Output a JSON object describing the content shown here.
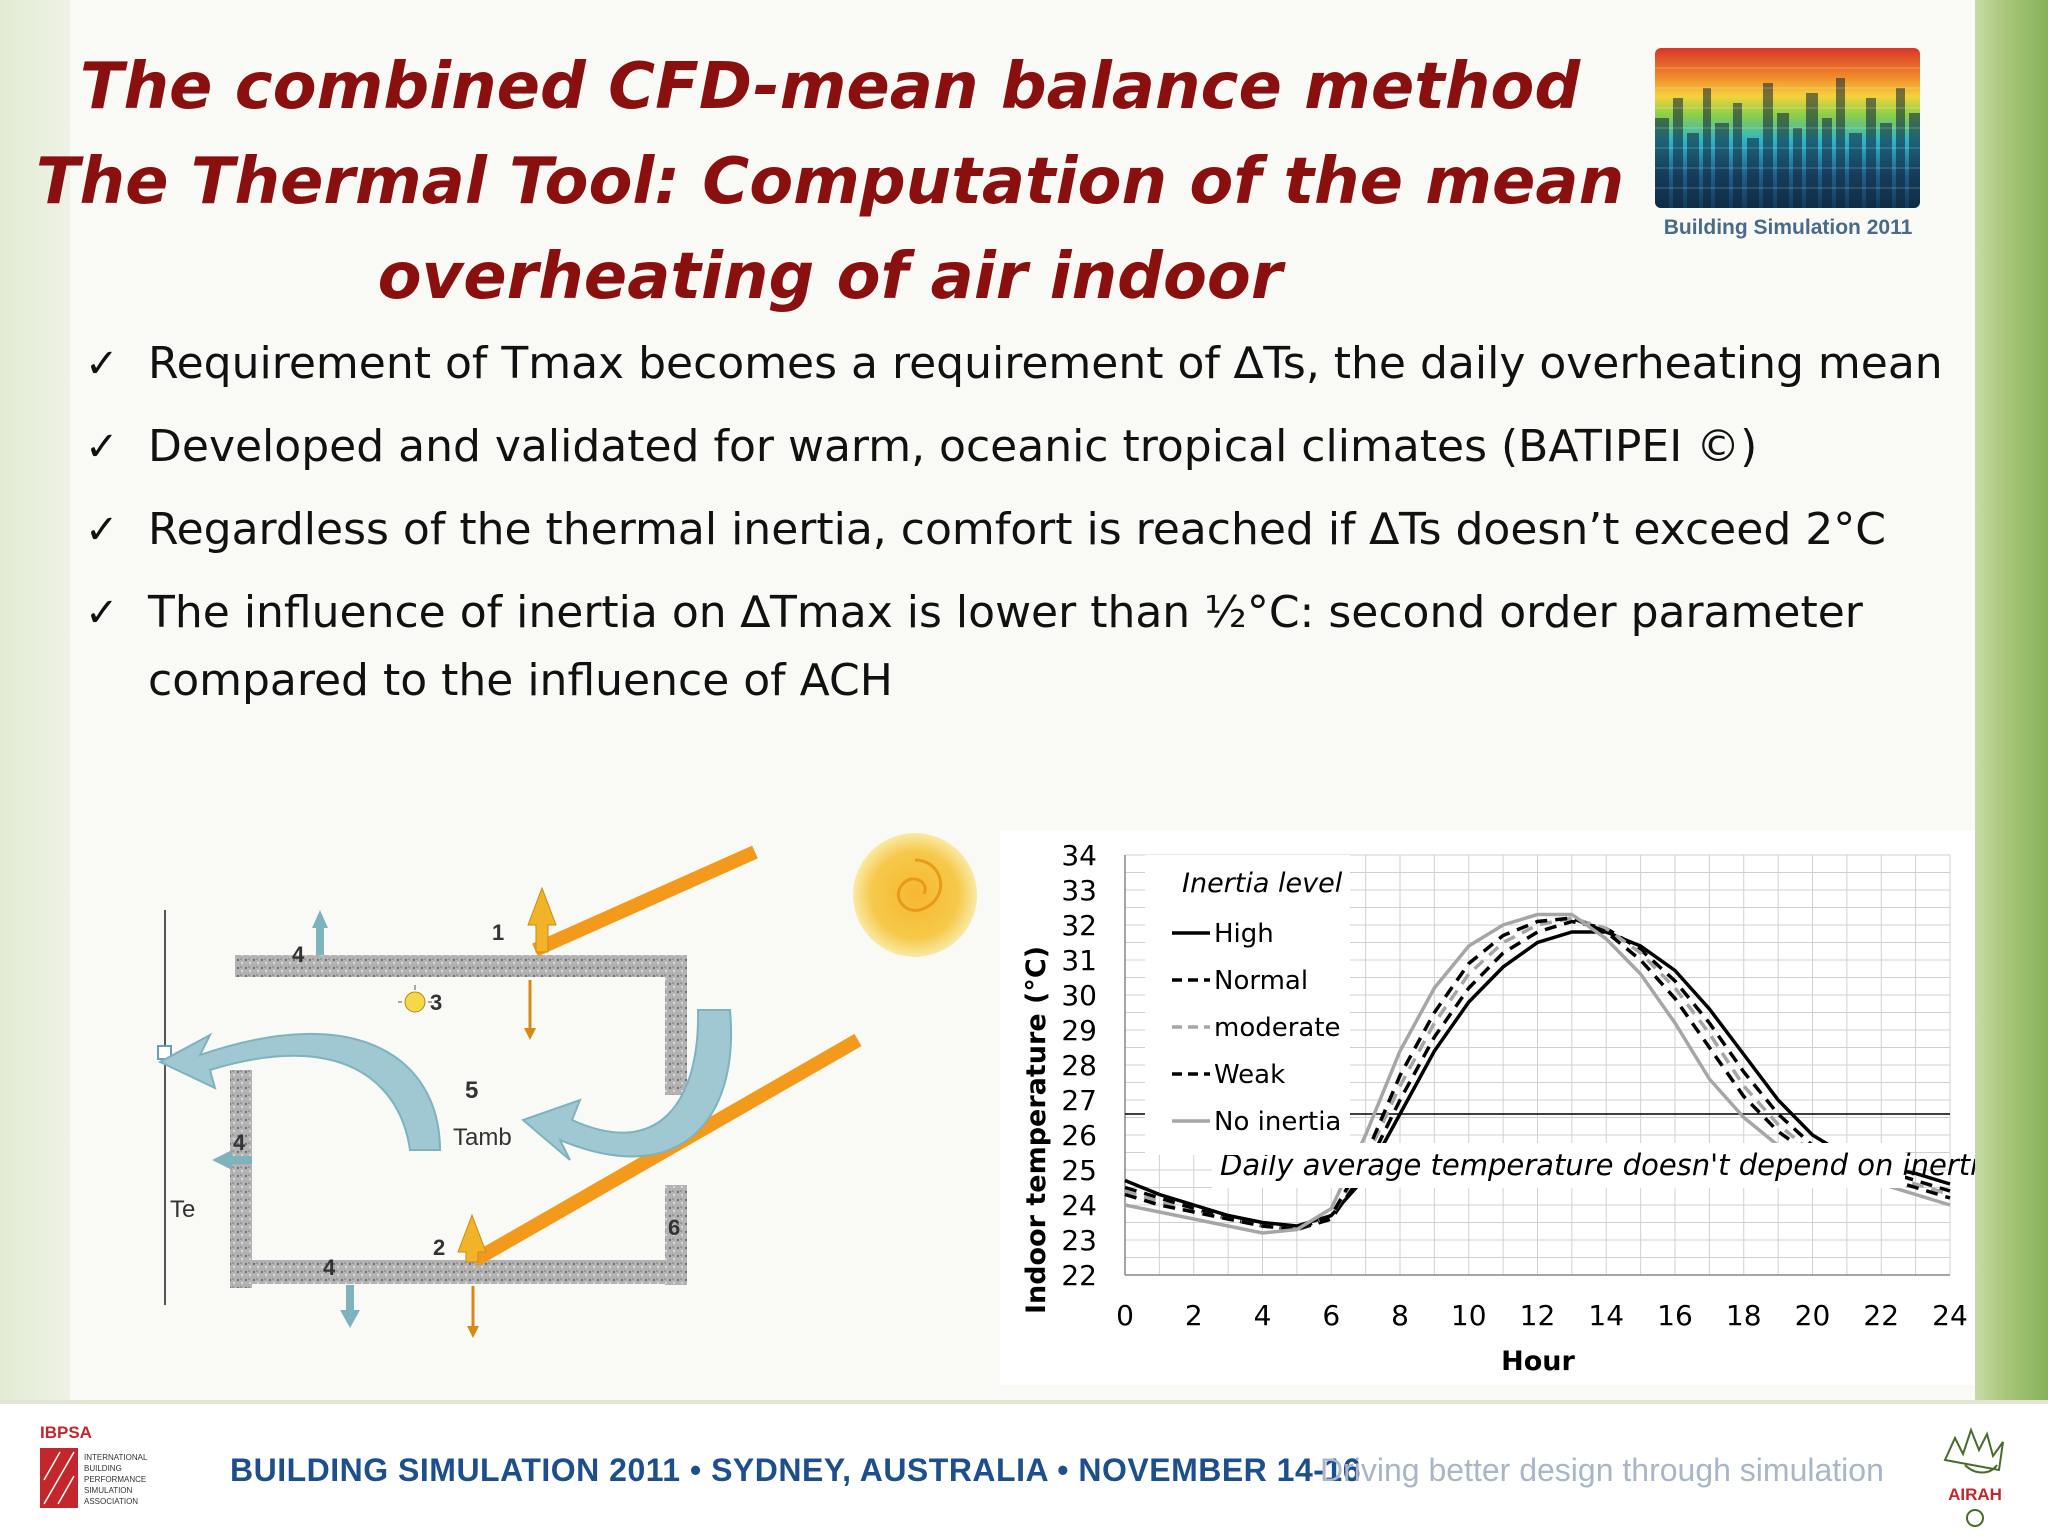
{
  "title": {
    "line1": "The combined CFD-mean balance method",
    "line2": "The Thermal Tool: Computation of the mean",
    "line3": "overheating of air indoor"
  },
  "logo": {
    "caption": "Building Simulation 2011"
  },
  "bullets": [
    {
      "check": "✓",
      "text": "Requirement of Tmax becomes a requirement of ∆Ts, the daily overheating mean"
    },
    {
      "check": "✓",
      "text": "Developed and validated for  warm, oceanic tropical climates (BATIPEI ©)"
    },
    {
      "check": "✓",
      "text": "Regardless of the thermal inertia, comfort is reached if ∆Ts doesn’t exceed 2°C"
    },
    {
      "check": "✓",
      "text": "The influence of inertia on ∆Tmax is lower than ½°C: second order parameter compared to the influence of ACH"
    }
  ],
  "diagram": {
    "labels": {
      "n1": "1",
      "n2": "2",
      "n3": "3",
      "n4a": "4",
      "n4b": "4",
      "n4c": "4",
      "n5": "5",
      "n6": "6",
      "tamb": "Tamb",
      "te": "Te"
    },
    "colors": {
      "wall": "#a8a8a8",
      "ray": "#f39a1d",
      "arrow_up": "#f1b429",
      "arrow_side": "#7eb3bd",
      "flow": "#9fc8d2"
    }
  },
  "chart_data": {
    "type": "line",
    "title": "",
    "xlabel": "Hour",
    "ylabel": "Indoor temperature (°C)",
    "xlim": [
      0,
      24
    ],
    "ylim": [
      22,
      34
    ],
    "xticks": [
      "0",
      "2",
      "4",
      "6",
      "8",
      "10",
      "12",
      "14",
      "16",
      "18",
      "20",
      "22",
      "24"
    ],
    "yticks": [
      "22",
      "23",
      "24",
      "25",
      "26",
      "27",
      "28",
      "29",
      "30",
      "31",
      "32",
      "33",
      "34"
    ],
    "grid": true,
    "legend_title": "Inertia level",
    "legend_position": "top-left",
    "x": [
      0,
      1,
      2,
      3,
      4,
      5,
      6,
      7,
      8,
      9,
      10,
      11,
      12,
      13,
      14,
      15,
      16,
      17,
      18,
      19,
      20,
      21,
      22,
      23,
      24
    ],
    "series": [
      {
        "name": "High",
        "style": "solid",
        "color": "#000000",
        "values": [
          24.7,
          24.3,
          24.0,
          23.7,
          23.5,
          23.4,
          23.7,
          24.8,
          26.6,
          28.4,
          29.8,
          30.8,
          31.5,
          31.8,
          31.8,
          31.4,
          30.7,
          29.6,
          28.3,
          27.0,
          26.0,
          25.4,
          25.1,
          24.9,
          24.6
        ]
      },
      {
        "name": "Normal",
        "style": "dashed",
        "color": "#000000",
        "values": [
          24.5,
          24.2,
          23.9,
          23.6,
          23.4,
          23.3,
          23.6,
          25.0,
          27.0,
          28.8,
          30.2,
          31.2,
          31.8,
          32.1,
          31.9,
          31.3,
          30.4,
          29.2,
          27.8,
          26.6,
          25.7,
          25.2,
          25.0,
          24.7,
          24.4
        ]
      },
      {
        "name": "moderate",
        "style": "dashed",
        "color": "#a6a6a6",
        "values": [
          24.4,
          24.1,
          23.8,
          23.6,
          23.4,
          23.3,
          23.7,
          25.3,
          27.4,
          29.2,
          30.6,
          31.5,
          32.0,
          32.2,
          31.9,
          31.2,
          30.2,
          28.9,
          27.4,
          26.3,
          25.5,
          25.1,
          24.9,
          24.6,
          24.3
        ]
      },
      {
        "name": "Weak",
        "style": "dashed",
        "color": "#000000",
        "values": [
          24.3,
          24.0,
          23.8,
          23.6,
          23.4,
          23.3,
          23.7,
          25.4,
          27.7,
          29.5,
          30.9,
          31.7,
          32.1,
          32.2,
          31.8,
          31.0,
          29.9,
          28.5,
          27.1,
          26.1,
          25.4,
          25.0,
          24.8,
          24.5,
          24.2
        ]
      },
      {
        "name": "No inertia",
        "style": "solid",
        "color": "#a6a6a6",
        "values": [
          24.0,
          23.8,
          23.6,
          23.4,
          23.2,
          23.3,
          23.9,
          26.0,
          28.4,
          30.2,
          31.4,
          32.0,
          32.3,
          32.3,
          31.6,
          30.6,
          29.2,
          27.6,
          26.5,
          25.7,
          25.2,
          24.9,
          24.6,
          24.3,
          24.0
        ]
      }
    ],
    "reference_line": {
      "y": 26.6
    },
    "annotation": "Daily average temperature  doesn't depend on inertia"
  },
  "footer": {
    "ibpsa_title": "IBPSA",
    "ibpsa_sub": [
      "INTERNATIONAL",
      "BUILDING",
      "PERFORMANCE",
      "SIMULATION",
      "ASSOCIATION"
    ],
    "event": "BUILDING SIMULATION 2011 • SYDNEY, AUSTRALIA • NOVEMBER 14-16",
    "tagline": "Driving better design through simulation",
    "airah": "AIRAH"
  }
}
